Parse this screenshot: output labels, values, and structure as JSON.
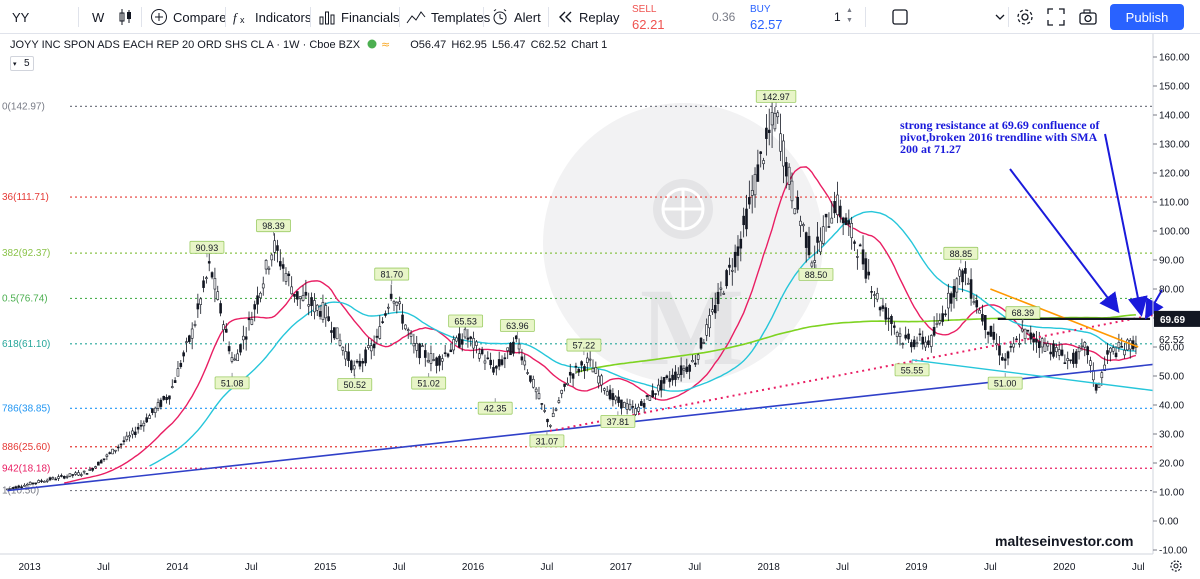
{
  "toolbar": {
    "symbol": "YY",
    "interval": "W",
    "compare": "Compare",
    "indicators": "Indicators",
    "financials": "Financials",
    "templates": "Templates",
    "alert": "Alert",
    "replay": "Replay",
    "sell_label": "SELL",
    "sell_price": "62.21",
    "spread": "0.36",
    "buy_label": "BUY",
    "buy_price": "62.57",
    "quantity": "1",
    "publish": "Publish"
  },
  "legend": {
    "title": "JOYY INC SPON ADS EACH REP 20 ORD SHS CL A · 1W · Cboe BZX",
    "open": "O56.47",
    "high": "H62.95",
    "low": "L56.47",
    "close": "C62.52",
    "layout_name": "Chart 1",
    "sub_indicator": "5"
  },
  "colors": {
    "candles": "#131722",
    "sma_fast": "#e91e63",
    "sma_mid": "#26c6da",
    "sma_200": "#7ed321",
    "trend_blue": "#3040c8",
    "annotation": "#1a1adb",
    "resistance": "#131722"
  },
  "chart_data": {
    "type": "candlestick",
    "y_axis": {
      "ticks": [
        "160.00",
        "150.00",
        "140.00",
        "130.00",
        "120.00",
        "110.00",
        "100.00",
        "90.00",
        "80.00",
        "70.00",
        "60.00",
        "50.00",
        "40.00",
        "30.00",
        "20.00",
        "10.00",
        "0.00",
        "-10.00"
      ],
      "current_price": "62.52",
      "resistance_price": "69.69"
    },
    "x_axis": {
      "ticks": [
        "2013",
        "Jul",
        "2014",
        "Jul",
        "2015",
        "Jul",
        "2016",
        "Jul",
        "2017",
        "Jul",
        "2018",
        "Jul",
        "2019",
        "Jul",
        "2020",
        "Jul"
      ]
    },
    "fib_levels": [
      {
        "label": "1(10.50)",
        "value": 10.5,
        "color": "#787b86"
      },
      {
        "label": "942(18.18)",
        "value": 18.18,
        "color": "#e91e63"
      },
      {
        "label": "886(25.60)",
        "value": 25.6,
        "color": "#e53935"
      },
      {
        "label": "786(38.85)",
        "value": 38.85,
        "color": "#2196f3"
      },
      {
        "label": "618(61.10)",
        "value": 61.1,
        "color": "#26a69a"
      },
      {
        "label": "0.5(76.74)",
        "value": 76.74,
        "color": "#4caf50"
      },
      {
        "label": "382(92.37)",
        "value": 92.37,
        "color": "#8bc34a"
      },
      {
        "label": "36(111.71)",
        "value": 111.71,
        "color": "#e53935"
      },
      {
        "label": "0(142.97)",
        "value": 142.97,
        "color": "#787b86"
      }
    ],
    "price_labels": [
      {
        "text": "90.93",
        "x": 2014.2,
        "y": 90.93
      },
      {
        "text": "98.39",
        "x": 2014.65,
        "y": 98.39
      },
      {
        "text": "51.08",
        "x": 2014.37,
        "y": 51.08
      },
      {
        "text": "81.70",
        "x": 2015.45,
        "y": 81.7
      },
      {
        "text": "50.52",
        "x": 2015.2,
        "y": 50.52
      },
      {
        "text": "51.02",
        "x": 2015.7,
        "y": 51.02
      },
      {
        "text": "65.53",
        "x": 2015.95,
        "y": 65.53
      },
      {
        "text": "63.96",
        "x": 2016.3,
        "y": 63.96
      },
      {
        "text": "42.35",
        "x": 2016.15,
        "y": 42.35
      },
      {
        "text": "57.22",
        "x": 2016.75,
        "y": 57.22
      },
      {
        "text": "31.07",
        "x": 2016.5,
        "y": 31.07
      },
      {
        "text": "37.81",
        "x": 2016.98,
        "y": 37.81
      },
      {
        "text": "142.97",
        "x": 2018.05,
        "y": 142.97
      },
      {
        "text": "88.50",
        "x": 2018.32,
        "y": 88.5
      },
      {
        "text": "88.85",
        "x": 2019.3,
        "y": 88.85
      },
      {
        "text": "55.55",
        "x": 2018.97,
        "y": 55.55
      },
      {
        "text": "68.39",
        "x": 2019.72,
        "y": 68.39
      },
      {
        "text": "51.00",
        "x": 2019.6,
        "y": 51.0
      }
    ],
    "annotation": "strong resistance at 69.69 confluence of pivot,broken 2016 trendline with SMA 200 at 71.27",
    "watermark": "malteseinvestor.com"
  }
}
